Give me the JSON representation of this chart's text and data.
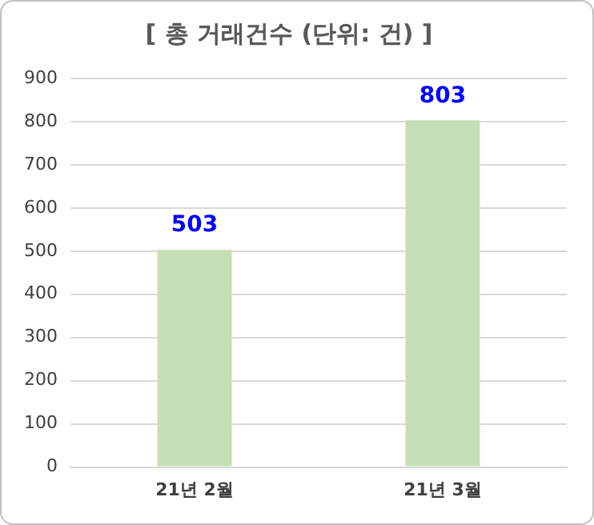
{
  "chart_data": {
    "type": "bar",
    "title": "[ 총 거래건수 (단위: 건) ]",
    "categories": [
      "21년 2월",
      "21년 3월"
    ],
    "values": [
      503,
      803
    ],
    "color": "#c5e0b4",
    "ylim": [
      0,
      900
    ],
    "yticks": [
      0,
      100,
      200,
      300,
      400,
      500,
      600,
      700,
      800,
      900
    ],
    "grid": "y",
    "data_labels": true
  }
}
